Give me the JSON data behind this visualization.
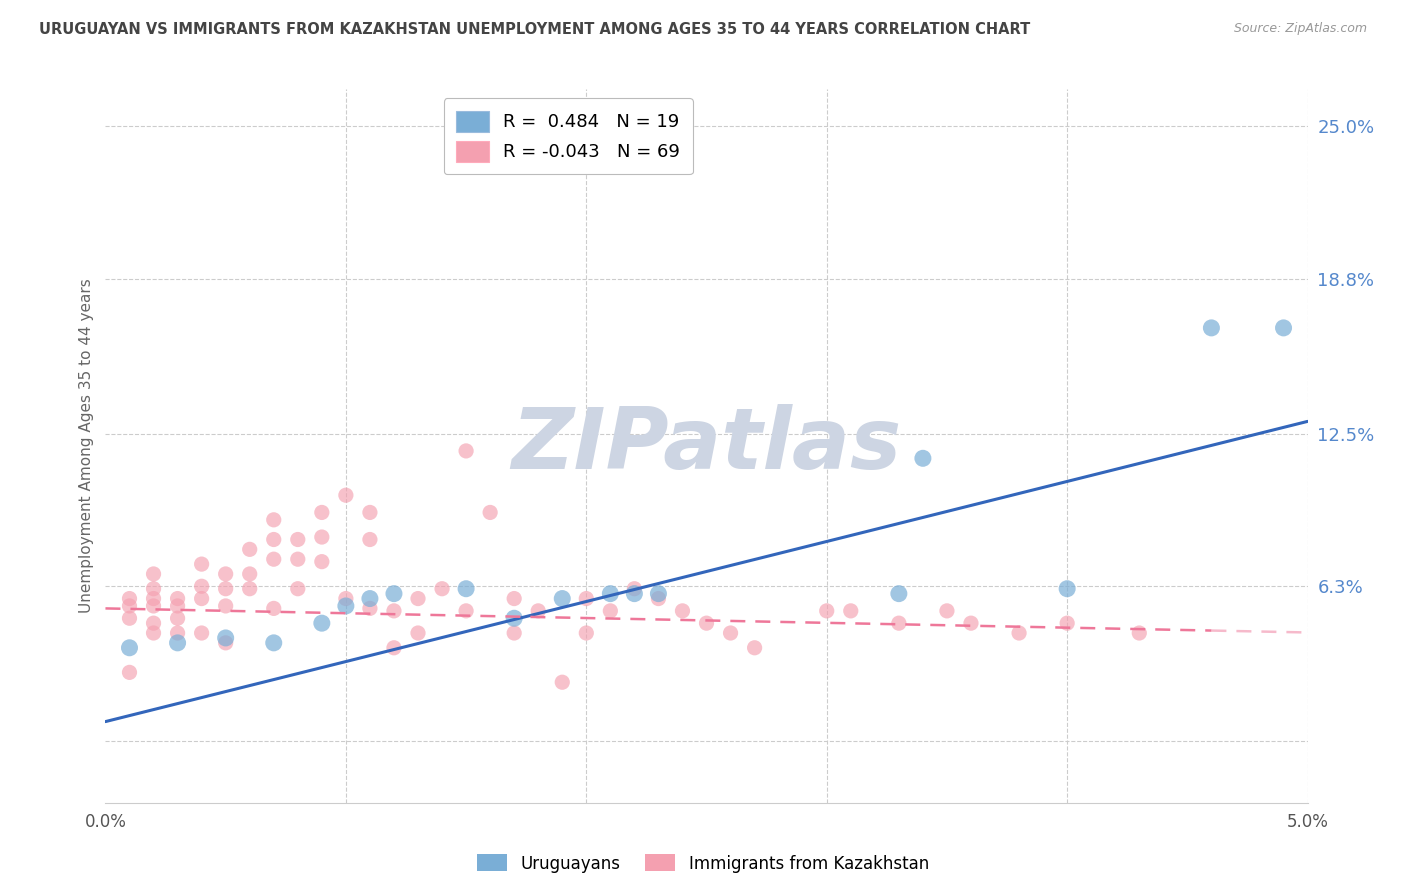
{
  "title": "URUGUAYAN VS IMMIGRANTS FROM KAZAKHSTAN UNEMPLOYMENT AMONG AGES 35 TO 44 YEARS CORRELATION CHART",
  "source": "Source: ZipAtlas.com",
  "ylabel": "Unemployment Among Ages 35 to 44 years",
  "x_min": 0.0,
  "x_max": 0.05,
  "y_min": -0.025,
  "y_max": 0.265,
  "right_yticks": [
    0.0,
    0.063,
    0.125,
    0.188,
    0.25
  ],
  "right_yticklabels": [
    "",
    "6.3%",
    "12.5%",
    "18.8%",
    "25.0%"
  ],
  "bottom_xticks": [
    0.0,
    0.01,
    0.02,
    0.03,
    0.04,
    0.05
  ],
  "bottom_xticklabels": [
    "0.0%",
    "",
    "",
    "",
    "",
    "5.0%"
  ],
  "watermark": "ZIPatlas",
  "watermark_color": "#cdd5e3",
  "title_color": "#444444",
  "source_color": "#999999",
  "blue_color": "#7aaed6",
  "pink_color": "#f4a0b0",
  "blue_line_color": "#3366bb",
  "pink_line_color": "#ee7799",
  "right_tick_color": "#5588cc",
  "legend_blue_r": "R =  0.484",
  "legend_blue_n": "N = 19",
  "legend_pink_r": "R = -0.043",
  "legend_pink_n": "N = 69",
  "blue_x": [
    0.001,
    0.003,
    0.005,
    0.007,
    0.009,
    0.01,
    0.011,
    0.012,
    0.015,
    0.017,
    0.019,
    0.021,
    0.022,
    0.023,
    0.033,
    0.034,
    0.04,
    0.046,
    0.049
  ],
  "blue_y": [
    0.038,
    0.04,
    0.042,
    0.04,
    0.048,
    0.055,
    0.058,
    0.06,
    0.062,
    0.05,
    0.058,
    0.06,
    0.06,
    0.06,
    0.06,
    0.115,
    0.062,
    0.168,
    0.168
  ],
  "pink_x": [
    0.001,
    0.001,
    0.001,
    0.001,
    0.002,
    0.002,
    0.002,
    0.002,
    0.002,
    0.002,
    0.003,
    0.003,
    0.003,
    0.003,
    0.004,
    0.004,
    0.004,
    0.004,
    0.005,
    0.005,
    0.005,
    0.005,
    0.006,
    0.006,
    0.006,
    0.007,
    0.007,
    0.007,
    0.007,
    0.008,
    0.008,
    0.008,
    0.009,
    0.009,
    0.009,
    0.01,
    0.01,
    0.011,
    0.011,
    0.011,
    0.012,
    0.012,
    0.013,
    0.013,
    0.014,
    0.015,
    0.015,
    0.016,
    0.017,
    0.017,
    0.018,
    0.019,
    0.02,
    0.02,
    0.021,
    0.022,
    0.023,
    0.024,
    0.025,
    0.026,
    0.027,
    0.03,
    0.031,
    0.033,
    0.035,
    0.036,
    0.038,
    0.04,
    0.043
  ],
  "pink_y": [
    0.058,
    0.055,
    0.05,
    0.028,
    0.068,
    0.062,
    0.058,
    0.055,
    0.048,
    0.044,
    0.058,
    0.055,
    0.05,
    0.044,
    0.072,
    0.063,
    0.058,
    0.044,
    0.068,
    0.062,
    0.055,
    0.04,
    0.078,
    0.068,
    0.062,
    0.09,
    0.082,
    0.074,
    0.054,
    0.082,
    0.074,
    0.062,
    0.093,
    0.083,
    0.073,
    0.1,
    0.058,
    0.093,
    0.082,
    0.054,
    0.053,
    0.038,
    0.058,
    0.044,
    0.062,
    0.118,
    0.053,
    0.093,
    0.058,
    0.044,
    0.053,
    0.024,
    0.058,
    0.044,
    0.053,
    0.062,
    0.058,
    0.053,
    0.048,
    0.044,
    0.038,
    0.053,
    0.053,
    0.048,
    0.053,
    0.048,
    0.044,
    0.048,
    0.044
  ]
}
